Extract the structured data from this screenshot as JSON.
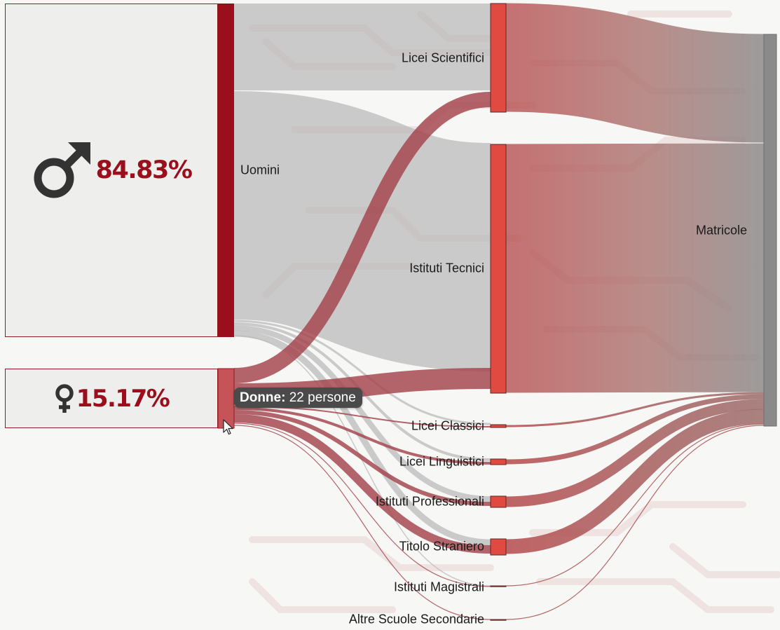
{
  "stats": {
    "men_percent": "84.83%",
    "women_percent": "15.17%",
    "men_icon": "male-symbol-icon",
    "women_icon": "female-symbol-icon"
  },
  "nodes": {
    "uomini": "Uomini",
    "donne": "Donne",
    "licei_scientifici": "Licei Scientifici",
    "istituti_tecnici": "Istituti Tecnici",
    "licei_classici": "Licei Classici",
    "licei_linguistici": "Licei Linguistici",
    "istituti_professionali": "Istituti Professionali",
    "titolo_straniero": "Titolo Straniero",
    "istituti_magistrali": "Istituti Magistrali",
    "altre_scuole": "Altre Scuole Secondarie",
    "matricole": "Matricole"
  },
  "tooltip": {
    "name": "Donne:",
    "value": "22 persone"
  },
  "colors": {
    "men": "#9a0f1b",
    "women": "#c0494f",
    "school_node": "#e04a40",
    "target_node": "#8a8a8a",
    "link_men": "#bdbdbd",
    "link_women": "#a2434a",
    "accent_text": "#9a0f1b"
  }
}
